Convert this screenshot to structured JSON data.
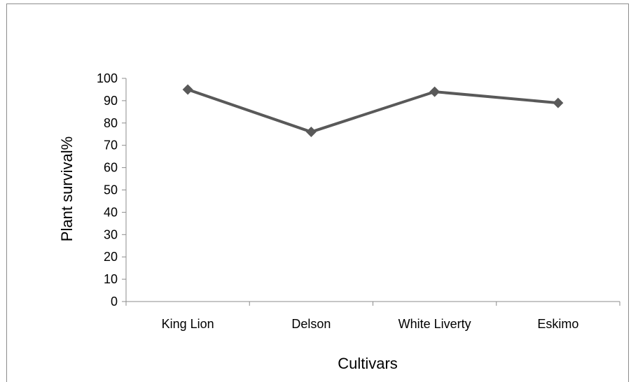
{
  "chart_data": {
    "type": "line",
    "categories": [
      "King Lion",
      "Delson",
      "White Liverty",
      "Eskimo"
    ],
    "series": [
      {
        "values": [
          95,
          76,
          94,
          89
        ]
      }
    ],
    "xlabel": "Cultivars",
    "ylabel": "Plant survival%",
    "ylim": [
      0,
      100
    ],
    "yticks": [
      0,
      10,
      20,
      30,
      40,
      50,
      60,
      70,
      80,
      90,
      100
    ],
    "grid": false,
    "legend": "none",
    "line_color": "#595959",
    "marker": "diamond"
  }
}
